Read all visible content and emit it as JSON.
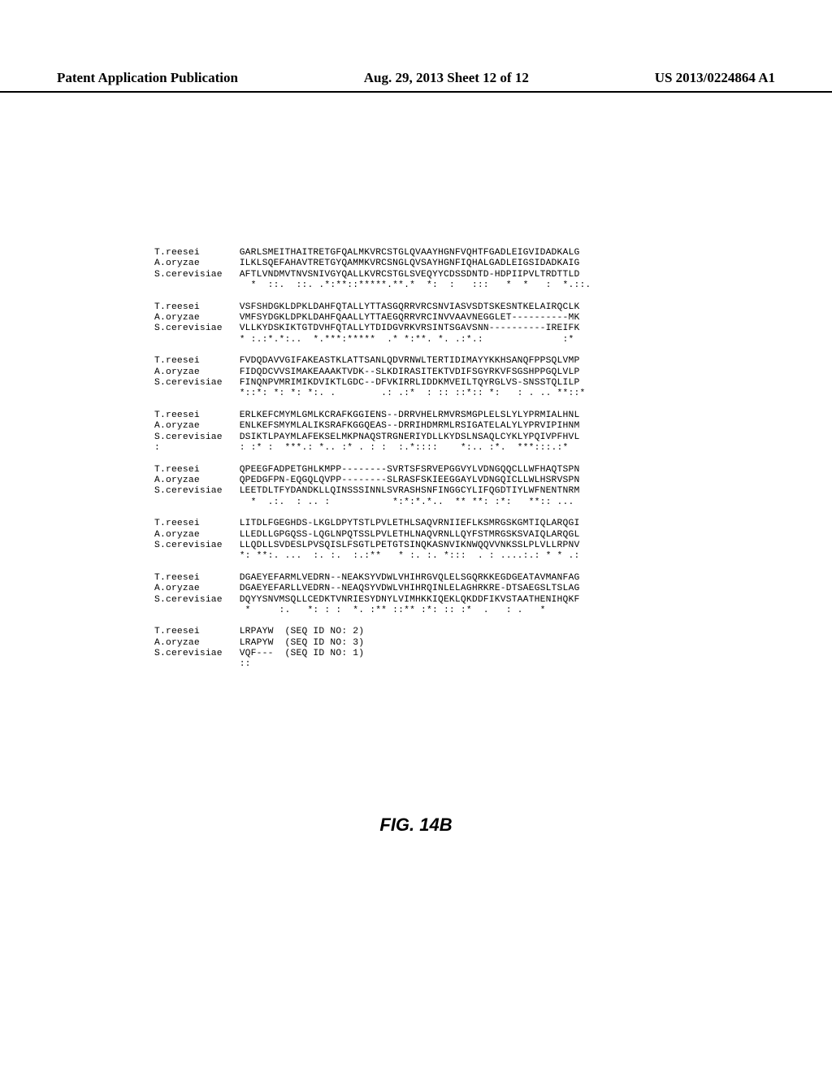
{
  "header": {
    "left": "Patent Application Publication",
    "center": "Aug. 29, 2013  Sheet 12 of 12",
    "right": "US 2013/0224864 A1"
  },
  "blocks": [
    {
      "rows": [
        {
          "label": "T.reesei",
          "seq": "GARLSMEITHAITRETGFQALMKVRCSTGLQVAAYHGNFVQHTFGADLEIGVIDADKALG"
        },
        {
          "label": "A.oryzae",
          "seq": "ILKLSQEFAHAVTRETGYQAMMKVRCSNGLQVSAYHGNFIQHALGADLEIGSIDADKAIG"
        },
        {
          "label": "S.cerevisiae",
          "seq": "AFTLVNDMVTNVSNIVGYQALLKVRCSTGLSVEQYYCDSSDNTD-HDPIIPVLTRDTTLD"
        },
        {
          "label": "",
          "seq": "  *  ::.  ::. .*:**::*****.**.*  *:  :   :::   *  *   :  *.::."
        }
      ]
    },
    {
      "rows": [
        {
          "label": "T.reesei",
          "seq": "VSFSHDGKLDPKLDAHFQTALLYTTASGQRRVRCSNVIASVSDTSKESNTKELAIRQCLK"
        },
        {
          "label": "A.oryzae",
          "seq": "VMFSYDGKLDPKLDAHFQAALLYTTAEGQRRVRCINVVAAVNEGGLET----------MK"
        },
        {
          "label": "S.cerevisiae",
          "seq": "VLLKYDSKIKTGTDVHFQTALLYTDIDGVRKVRSINTSGAVSNN----------IREIFK"
        },
        {
          "label": "",
          "seq": "* :.:*.*:..  *.***:*****  .* *:**. *. .:*.:              :*"
        }
      ]
    },
    {
      "rows": [
        {
          "label": "T.reesei",
          "seq": "FVDQDAVVGIFAKEASTKLATTSANLQDVRNWLTERTIDIMAYYKKHSANQFPPSQLVMP"
        },
        {
          "label": "A.oryzae",
          "seq": "FIDQDCVVSIMAKEAAAKTVDK--SLKDIRASITEKTVDIFSGYRKVFSGSHPPGQLVLP"
        },
        {
          "label": "S.cerevisiae",
          "seq": "FINQNPVMRIMIKDVIKTLGDC--DFVKIRRLIDDKMVEILTQYRGLVS-SNSSTQLILP"
        },
        {
          "label": "",
          "seq": "*::*: *: *: *:. .        .: .:*  : :: ::*:: *:   : . .. **::*"
        }
      ]
    },
    {
      "rows": [
        {
          "label": "T.reesei",
          "seq": "ERLKEFCMYMLGMLKCRAFKGGIENS--DRRVHELRMVRSMGPLELSLYLYPRMIALHNL"
        },
        {
          "label": "A.oryzae",
          "seq": "ENLKEFSMYMLALIKSRAFKGGQEAS--DRRIHDMRMLRSIGATELALYLYPRVIPIHNM"
        },
        {
          "label": "S.cerevisiae",
          "seq": "DSIKTLPAYMLAFEKSELMKPNAQSTRGNERIYDLLKYDSLNSAQLCYKLYPQIVPFHVL"
        },
        {
          "label": ":",
          "seq": ": :* :  ***.: *.. :* . : :  :.*::::    *:.. :*.  ***:::.:*  "
        }
      ]
    },
    {
      "rows": [
        {
          "label": "T.reesei",
          "seq": "QPEEGFADPETGHLKMPP--------SVRTSFSRVEPGGVYLVDNGQQCLLWFHAQTSPN"
        },
        {
          "label": "A.oryzae",
          "seq": "QPEDGFPN-EQGQLQVPP--------SLRASFSKIEEGGAYLVDNGQICLLWLHSRVSPN"
        },
        {
          "label": "S.cerevisiae",
          "seq": "LEETDLTFYDANDKLLQINSSSINNLSVRASHSNFINGGCYLIFQGDTIYLWFNENTNRM"
        },
        {
          "label": "",
          "seq": "  *  .:.  : .. :           *:*:*.*..  ** **: :*:   **:: ... "
        }
      ]
    },
    {
      "rows": [
        {
          "label": "T.reesei",
          "seq": "LITDLFGEGHDS-LKGLDPYTSTLPVLETHLSAQVRNIIEFLKSMRGSKGMTIQLARQGI"
        },
        {
          "label": "A.oryzae",
          "seq": "LLEDLLGPGQSS-LQGLNPQTSSLPVLETHLNAQVRNLLQYFSTMRGSKSVAIQLARQGL"
        },
        {
          "label": "S.cerevisiae",
          "seq": "LLQDLLSVDESLPVSQISLFSGTLPETGTSINQKASNVIKNWQQVVNKSSLPLVLLRPNV"
        },
        {
          "label": "",
          "seq": "*: **:. ...  :. :.  :.:**   * :. :. *:::  . : ....:.: * * .:"
        }
      ]
    },
    {
      "rows": [
        {
          "label": "T.reesei",
          "seq": "DGAEYEFARMLVEDRN--NEAKSYVDWLVHIHRGVQLELSGQRKKEGDGEATAVMANFAG"
        },
        {
          "label": "A.oryzae",
          "seq": "DGAEYEFARLLVEDRN--NEAQSYVDWLVHIHRQINLELAGHRKRE-DTSAEGSLTSLAG"
        },
        {
          "label": "S.cerevisiae",
          "seq": "DQYYSNVMSQLLCEDKTVNRIESYDNYLVIMHKKIQEKLQKDDFIKVSTAATHENIHQKF"
        },
        {
          "label": "",
          "seq": " *     :.   *: : :  *. :** ::** :*: :: :*  .   : .   *       "
        }
      ]
    },
    {
      "rows": [
        {
          "label": "T.reesei",
          "seq": "LRPAYW  (SEQ ID NO: 2)"
        },
        {
          "label": "A.oryzae",
          "seq": "LRAPYW  (SEQ ID NO: 3)"
        },
        {
          "label": "S.cerevisiae",
          "seq": "VQF---  (SEQ ID NO: 1)"
        },
        {
          "label": "",
          "seq": "::"
        }
      ]
    }
  ],
  "figure_label": "FIG. 14B",
  "style": {
    "label_col_width": 15,
    "block_gap_lines": 1
  }
}
